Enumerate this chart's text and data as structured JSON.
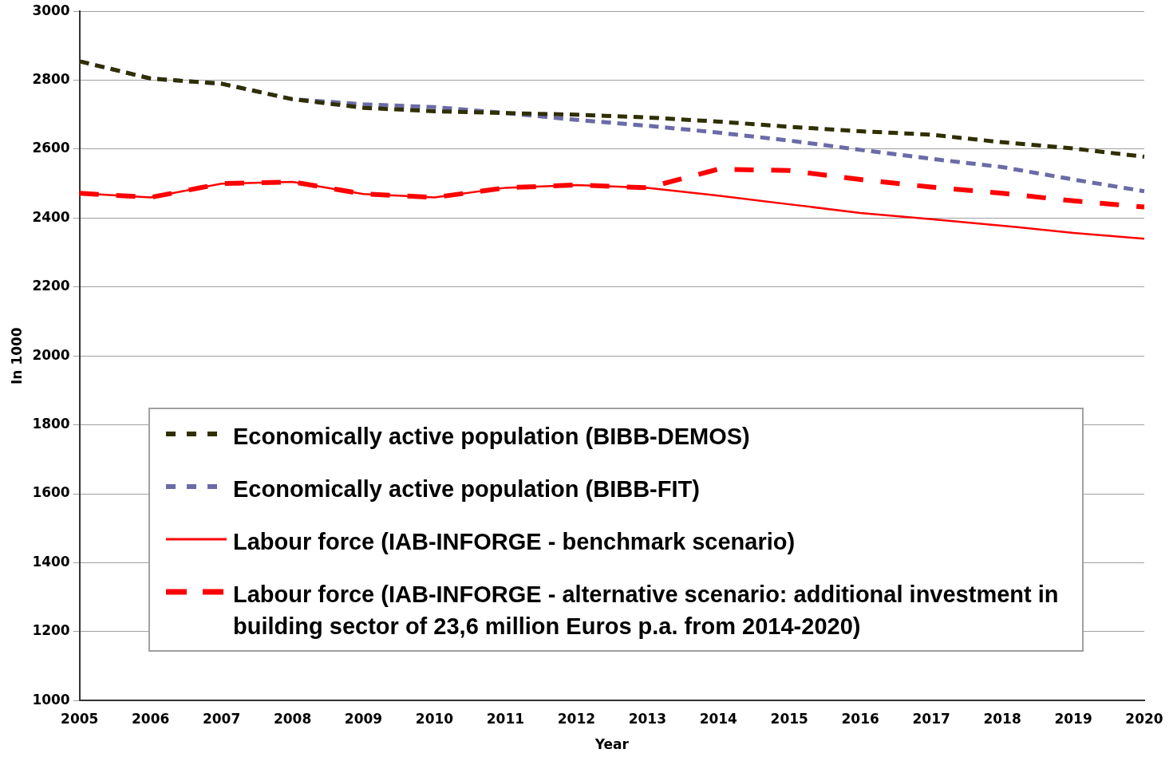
{
  "chart_data": {
    "type": "line",
    "xlabel": "Year",
    "ylabel": "In 1000",
    "categories": [
      "2005",
      "2006",
      "2007",
      "2008",
      "2009",
      "2010",
      "2011",
      "2012",
      "2013",
      "2014",
      "2015",
      "2016",
      "2017",
      "2018",
      "2019",
      "2020"
    ],
    "ylim": [
      1000,
      3000
    ],
    "yticks": [
      1000,
      1200,
      1400,
      1600,
      1800,
      2000,
      2200,
      2400,
      2600,
      2800,
      3000
    ],
    "grid": "y",
    "legend": "bottom",
    "marker": "none",
    "series": [
      {
        "name": "Economically active population (BIBB-DEMOS)",
        "color": "#2f2f00",
        "line_style": "dashed",
        "values": [
          2855,
          2805,
          2790,
          2745,
          2720,
          2710,
          2705,
          2700,
          2692,
          2680,
          2665,
          2652,
          2642,
          2620,
          2602,
          2578
        ]
      },
      {
        "name": "Economically active population (BIBB-FIT)",
        "color": "#6b6ba8",
        "line_style": "dashed",
        "values": [
          2855,
          2805,
          2790,
          2745,
          2730,
          2722,
          2705,
          2685,
          2668,
          2648,
          2625,
          2598,
          2572,
          2548,
          2512,
          2478
        ]
      },
      {
        "name": "Labour force (IAB-INFORGE - benchmark scenario)",
        "color": "#ff0000",
        "line_style": "solid",
        "values": [
          2472,
          2460,
          2500,
          2505,
          2470,
          2460,
          2488,
          2496,
          2488,
          2465,
          2440,
          2415,
          2397,
          2378,
          2357,
          2340
        ]
      },
      {
        "name": "Labour force (IAB-INFORGE - alternative scenario: additional investment in building sector of 23,6 million Euros p.a. from 2014-2020)",
        "color": "#ff0000",
        "line_style": "dashed",
        "values": [
          2472,
          2460,
          2500,
          2505,
          2470,
          2460,
          2488,
          2496,
          2488,
          2542,
          2538,
          2512,
          2490,
          2472,
          2450,
          2432
        ]
      }
    ]
  }
}
